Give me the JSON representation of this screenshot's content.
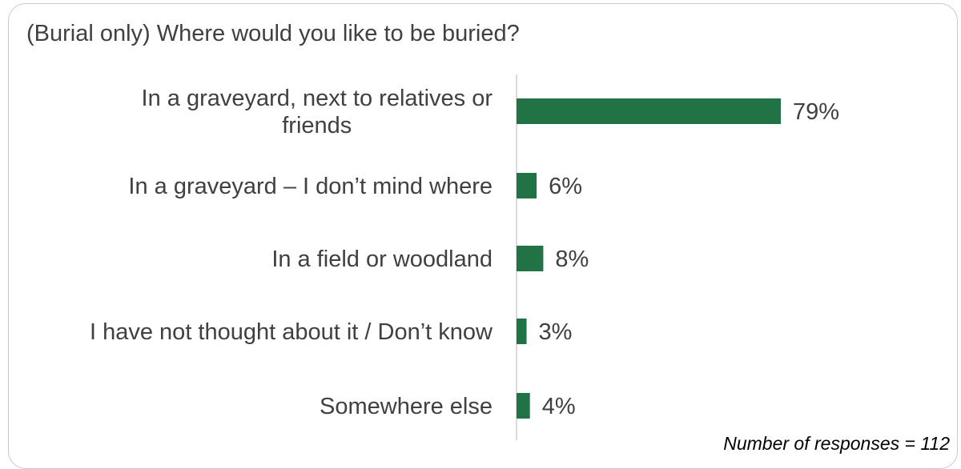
{
  "chart_data": {
    "type": "bar",
    "orientation": "horizontal",
    "title": "(Burial only) Where would you like to be buried?",
    "categories": [
      [
        "In a graveyard, next to relatives or",
        "friends"
      ],
      [
        "In a graveyard – I don’t mind where"
      ],
      [
        "In a field or woodland"
      ],
      [
        "I have not thought about it / Don’t know"
      ],
      [
        "Somewhere else"
      ]
    ],
    "values": [
      79,
      6,
      8,
      3,
      4
    ],
    "value_labels": [
      "79%",
      "6%",
      "8%",
      "3%",
      "4%"
    ],
    "unit": "%",
    "bar_color": "#217346",
    "grid": false,
    "legend": "none"
  },
  "footnote": "Number of responses = 112"
}
